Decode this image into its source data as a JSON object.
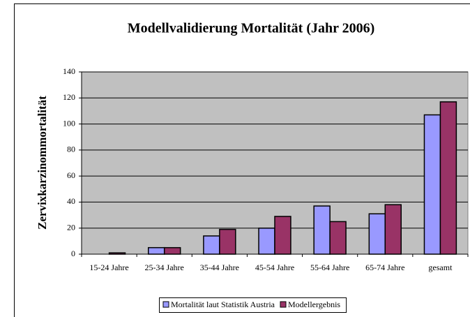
{
  "chart_data": {
    "type": "bar",
    "title": "Modellvalidierung Mortalität (Jahr 2006)",
    "y_label": "Zervixkarzinommortalität",
    "categories": [
      "15-24 Jahre",
      "25-34 Jahre",
      "35-44 Jahre",
      "45-54 Jahre",
      "55-64 Jahre",
      "65-74 Jahre",
      "gesamt"
    ],
    "series": [
      {
        "name": "Mortalität laut Statistik Austria",
        "color": "#9999ff",
        "values": [
          0,
          5,
          14,
          20,
          37,
          31,
          107
        ]
      },
      {
        "name": "Modellergebnis",
        "color": "#993366",
        "values": [
          1,
          5,
          19,
          29,
          25,
          38,
          117
        ]
      }
    ],
    "ylim": [
      0,
      140
    ],
    "yticks": [
      0,
      20,
      40,
      60,
      80,
      100,
      120,
      140
    ],
    "grid": true,
    "legend": "bottom"
  }
}
